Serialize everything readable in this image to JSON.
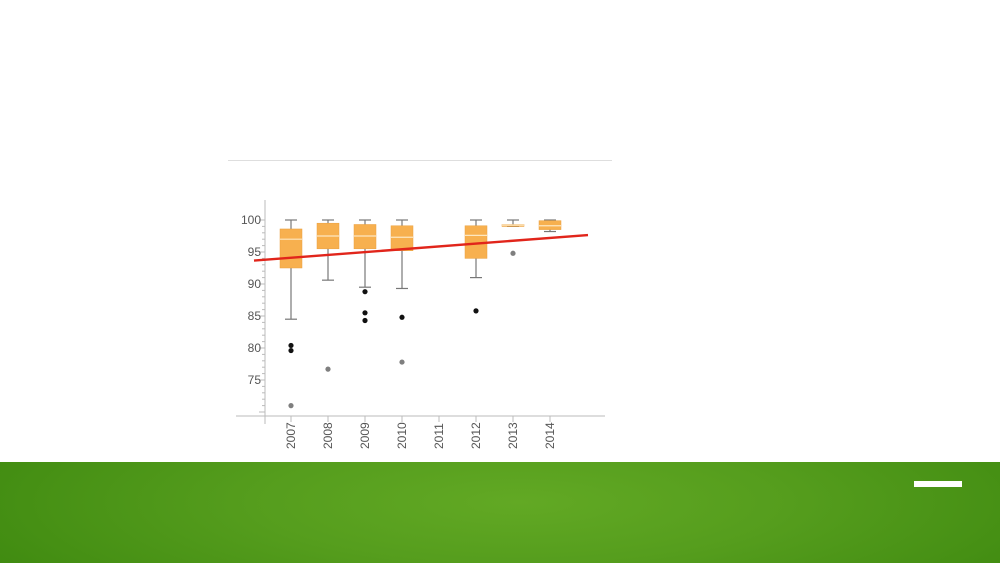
{
  "colors": {
    "box_fill": "#f7b04f",
    "median_line": "#fde7c0",
    "whisker": "#777777",
    "trend_line": "#e1251b",
    "outlier_dark": "#111111",
    "outlier_light": "#7f7f7f",
    "footer_green": "#559d1d"
  },
  "chart_data": {
    "type": "box",
    "categories": [
      "2007",
      "2008",
      "2009",
      "2010",
      "2011",
      "2012",
      "2013",
      "2014"
    ],
    "y_ticks": [
      "100",
      "95",
      "90",
      "85",
      "80",
      "75"
    ],
    "ylim": [
      69,
      103
    ],
    "boxes": [
      {
        "category": "2007",
        "min": 84.5,
        "q1": 92.5,
        "median": 97.0,
        "q3": 98.6,
        "max": 100.0
      },
      {
        "category": "2008",
        "min": 90.6,
        "q1": 95.5,
        "median": 97.5,
        "q3": 99.5,
        "max": 100.0
      },
      {
        "category": "2009",
        "min": 89.5,
        "q1": 95.5,
        "median": 97.5,
        "q3": 99.3,
        "max": 100.0
      },
      {
        "category": "2010",
        "min": 89.3,
        "q1": 95.2,
        "median": 97.3,
        "q3": 99.1,
        "max": 100.0
      },
      {
        "category": "2011",
        "min": null,
        "q1": null,
        "median": null,
        "q3": null,
        "max": null
      },
      {
        "category": "2012",
        "min": 91.0,
        "q1": 94.0,
        "median": 97.6,
        "q3": 99.1,
        "max": 100.0
      },
      {
        "category": "2013",
        "min": 99.0,
        "q1": 99.1,
        "median": 99.2,
        "q3": 99.3,
        "max": 100.0
      },
      {
        "category": "2014",
        "min": 98.2,
        "q1": 98.5,
        "median": 99.1,
        "q3": 99.9,
        "max": 100.0
      }
    ],
    "outliers": [
      {
        "category": "2007",
        "value": 80.4,
        "kind": "near"
      },
      {
        "category": "2007",
        "value": 79.6,
        "kind": "near"
      },
      {
        "category": "2007",
        "value": 71.0,
        "kind": "far"
      },
      {
        "category": "2008",
        "value": 76.7,
        "kind": "far"
      },
      {
        "category": "2009",
        "value": 88.8,
        "kind": "near"
      },
      {
        "category": "2009",
        "value": 85.5,
        "kind": "near"
      },
      {
        "category": "2009",
        "value": 84.3,
        "kind": "near"
      },
      {
        "category": "2010",
        "value": 84.8,
        "kind": "near"
      },
      {
        "category": "2010",
        "value": 77.8,
        "kind": "far"
      },
      {
        "category": "2012",
        "value": 85.8,
        "kind": "near"
      },
      {
        "category": "2013",
        "value": 94.8,
        "kind": "far"
      }
    ],
    "trend_line": {
      "start": {
        "category": "2007",
        "value": 94.1
      },
      "end": {
        "category": "2014",
        "value": 97.2
      }
    },
    "title": "",
    "xlabel": "",
    "ylabel": "",
    "grid": false,
    "legend": "none"
  }
}
